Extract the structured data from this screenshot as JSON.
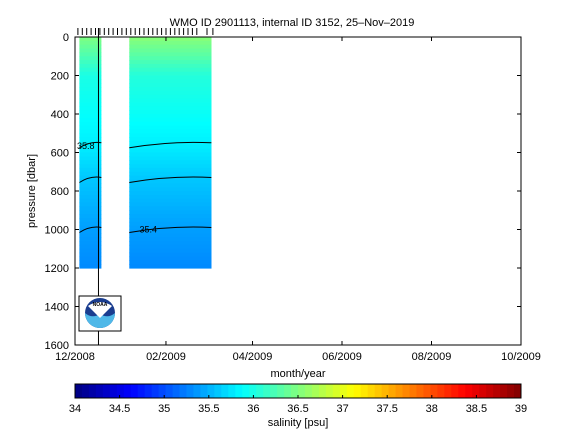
{
  "chart_data": {
    "type": "heatmap",
    "title": "WMO ID 2901113, internal ID 3152, 25–Nov–2019",
    "xlabel": "month/year",
    "ylabel": "pressure [dbar]",
    "x_ticks": [
      "12/2008",
      "02/2009",
      "04/2009",
      "06/2009",
      "08/2009",
      "10/2009"
    ],
    "y_ticks": [
      "0",
      "200",
      "400",
      "600",
      "800",
      "1000",
      "1200",
      "1400",
      "1600"
    ],
    "ylim": [
      1600,
      0
    ],
    "grid": false,
    "colorbar": {
      "label": "salinity [psu]",
      "range": [
        34,
        39
      ],
      "ticks": [
        "34",
        "34.5",
        "35",
        "35.5",
        "36",
        "36.5",
        "37",
        "37.5",
        "38",
        "38.5",
        "39"
      ],
      "colormap": "jet"
    },
    "contour_labels": [
      "35.8",
      "35.4"
    ],
    "profiles": [
      {
        "date": "2008-12-05",
        "salinity": [
          {
            "p": 0,
            "s": 36.5
          },
          {
            "p": 200,
            "s": 36.0
          },
          {
            "p": 560,
            "s": 35.8
          },
          {
            "p": 740,
            "s": 35.6
          },
          {
            "p": 1000,
            "s": 35.4
          },
          {
            "p": 1200,
            "s": 35.3
          }
        ]
      },
      {
        "date": "2008-12-16",
        "salinity": [
          {
            "p": 0,
            "s": 36.5
          },
          {
            "p": 200,
            "s": 36.0
          },
          {
            "p": 560,
            "s": 35.8
          },
          {
            "p": 740,
            "s": 35.6
          },
          {
            "p": 1000,
            "s": 35.4
          },
          {
            "p": 1200,
            "s": 35.3
          }
        ]
      },
      {
        "date": "2009-01-08",
        "salinity": [
          {
            "p": 0,
            "s": 36.5
          },
          {
            "p": 200,
            "s": 36.0
          },
          {
            "p": 560,
            "s": 35.8
          },
          {
            "p": 740,
            "s": 35.6
          },
          {
            "p": 1000,
            "s": 35.4
          },
          {
            "p": 1200,
            "s": 35.3
          }
        ]
      },
      {
        "date": "2009-02-15",
        "salinity": [
          {
            "p": 0,
            "s": 36.6
          },
          {
            "p": 200,
            "s": 36.1
          },
          {
            "p": 560,
            "s": 35.8
          },
          {
            "p": 740,
            "s": 35.6
          },
          {
            "p": 1000,
            "s": 35.4
          },
          {
            "p": 1190,
            "s": 35.3
          }
        ]
      }
    ],
    "cycle_markers": [
      "2008-12-03",
      "2008-12-06",
      "2008-12-09",
      "2008-12-12",
      "2008-12-15",
      "2008-12-18",
      "2008-12-21",
      "2008-12-24",
      "2008-12-27",
      "2008-12-30",
      "2009-01-02",
      "2009-01-05",
      "2009-01-08",
      "2009-01-11",
      "2009-01-14",
      "2009-01-17",
      "2009-01-20",
      "2009-01-23",
      "2009-01-26",
      "2009-01-29",
      "2009-02-01",
      "2009-02-04",
      "2009-02-07",
      "2009-02-10",
      "2009-02-13",
      "2009-02-16",
      "2009-02-19",
      "2009-02-22",
      "2009-03-01",
      "2009-03-05"
    ],
    "vertical_line_date": "2008-12-17"
  },
  "logo": {
    "text": "NOAA"
  },
  "colors": {
    "deep": "#0f78ee",
    "mid": "#34c8ff",
    "shallow": "#7df5a8"
  }
}
